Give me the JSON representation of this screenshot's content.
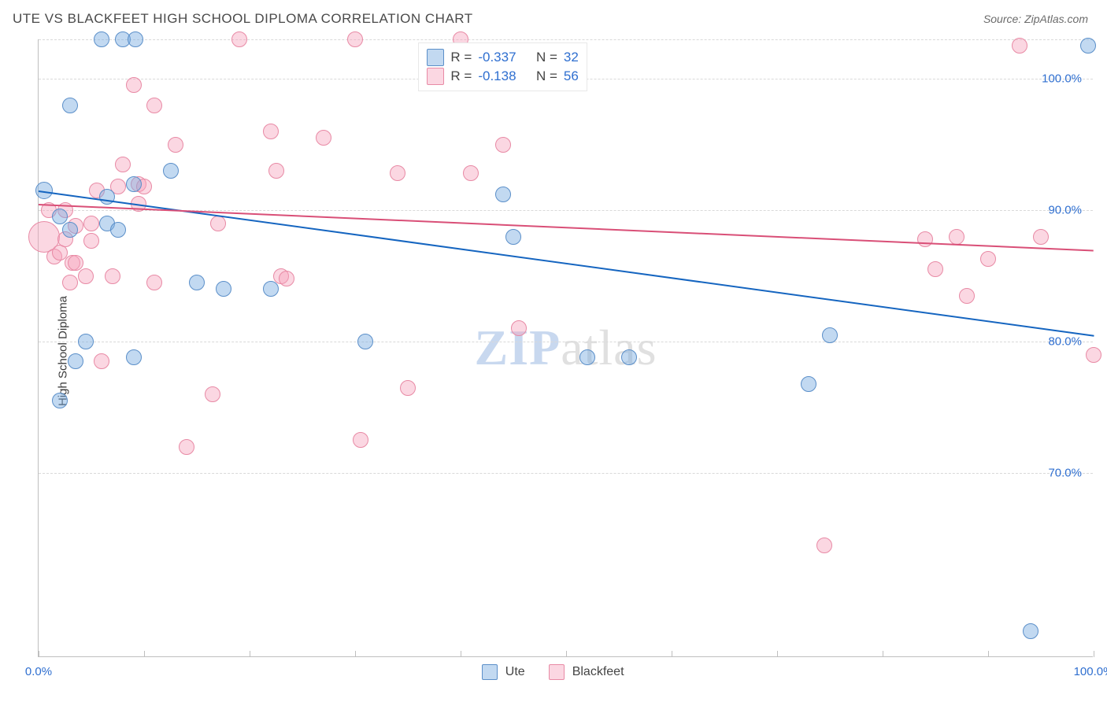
{
  "title": "UTE VS BLACKFEET HIGH SCHOOL DIPLOMA CORRELATION CHART",
  "source_label": "Source: ZipAtlas.com",
  "y_axis_label": "High School Diploma",
  "watermark": {
    "part1": "ZIP",
    "part2": "atlas"
  },
  "chart": {
    "type": "scatter",
    "background_color": "#ffffff",
    "grid_color": "#d9d9d9",
    "axis_color": "#bfbfbf",
    "tick_label_color": "#2f6fd0",
    "xlim": [
      0,
      100
    ],
    "ylim": [
      56,
      103
    ],
    "x_ticks_major": [
      0,
      100
    ],
    "x_ticks_minor": [
      10,
      20,
      30,
      40,
      50,
      60,
      70,
      80,
      90
    ],
    "x_tick_labels": {
      "0": "0.0%",
      "100": "100.0%"
    },
    "y_grid": [
      70,
      80,
      90,
      100,
      103
    ],
    "y_tick_labels": {
      "70": "70.0%",
      "80": "80.0%",
      "90": "90.0%",
      "100": "100.0%"
    },
    "marker_radius": 10,
    "marker_border_width": 1.5,
    "reg_line_width": 2,
    "series": [
      {
        "name": "Ute",
        "fill_color": "rgba(120,170,225,0.45)",
        "stroke_color": "#5b8fc9",
        "line_color": "#1565c0",
        "R": "-0.337",
        "N": "32",
        "reg_line": {
          "x1": 0,
          "y1": 91.5,
          "x2": 100,
          "y2": 80.5
        },
        "points": [
          {
            "x": 0.5,
            "y": 91.5,
            "r": 11
          },
          {
            "x": 2.0,
            "y": 89.5
          },
          {
            "x": 2.0,
            "y": 75.5
          },
          {
            "x": 3.0,
            "y": 98.0
          },
          {
            "x": 3.0,
            "y": 88.5
          },
          {
            "x": 3.5,
            "y": 78.5
          },
          {
            "x": 4.5,
            "y": 80.0
          },
          {
            "x": 6.0,
            "y": 103.0
          },
          {
            "x": 6.5,
            "y": 91.0
          },
          {
            "x": 6.5,
            "y": 89.0
          },
          {
            "x": 7.5,
            "y": 88.5
          },
          {
            "x": 8.0,
            "y": 103.0
          },
          {
            "x": 9.0,
            "y": 92.0
          },
          {
            "x": 9.2,
            "y": 103.0
          },
          {
            "x": 9.0,
            "y": 78.8
          },
          {
            "x": 12.5,
            "y": 93.0
          },
          {
            "x": 15.0,
            "y": 84.5
          },
          {
            "x": 17.5,
            "y": 84.0
          },
          {
            "x": 22.0,
            "y": 84.0
          },
          {
            "x": 31.0,
            "y": 80.0
          },
          {
            "x": 44.0,
            "y": 91.2
          },
          {
            "x": 45.0,
            "y": 88.0
          },
          {
            "x": 52.0,
            "y": 78.8
          },
          {
            "x": 56.0,
            "y": 78.8
          },
          {
            "x": 73.0,
            "y": 76.8
          },
          {
            "x": 75.0,
            "y": 80.5
          },
          {
            "x": 94.0,
            "y": 58.0
          },
          {
            "x": 99.5,
            "y": 102.5
          }
        ]
      },
      {
        "name": "Blackfeet",
        "fill_color": "rgba(245,160,185,0.42)",
        "stroke_color": "#e88aa5",
        "line_color": "#d94f77",
        "R": "-0.138",
        "N": "56",
        "reg_line": {
          "x1": 0,
          "y1": 90.5,
          "x2": 100,
          "y2": 87.0
        },
        "points": [
          {
            "x": 0.5,
            "y": 88.0,
            "r": 20
          },
          {
            "x": 1.0,
            "y": 90.0
          },
          {
            "x": 1.5,
            "y": 86.5
          },
          {
            "x": 2.0,
            "y": 86.8
          },
          {
            "x": 2.5,
            "y": 90.0
          },
          {
            "x": 2.5,
            "y": 87.8
          },
          {
            "x": 3.0,
            "y": 84.5
          },
          {
            "x": 3.2,
            "y": 86.0
          },
          {
            "x": 3.5,
            "y": 88.8
          },
          {
            "x": 3.5,
            "y": 86.0
          },
          {
            "x": 4.5,
            "y": 85.0
          },
          {
            "x": 5.0,
            "y": 89.0
          },
          {
            "x": 5.0,
            "y": 87.7
          },
          {
            "x": 5.5,
            "y": 91.5
          },
          {
            "x": 6.0,
            "y": 78.5
          },
          {
            "x": 7.0,
            "y": 85.0
          },
          {
            "x": 7.5,
            "y": 91.8
          },
          {
            "x": 8.0,
            "y": 93.5
          },
          {
            "x": 9.0,
            "y": 99.5
          },
          {
            "x": 9.5,
            "y": 92.0
          },
          {
            "x": 9.5,
            "y": 90.5
          },
          {
            "x": 10.0,
            "y": 91.8
          },
          {
            "x": 11.0,
            "y": 98.0
          },
          {
            "x": 11.0,
            "y": 84.5
          },
          {
            "x": 13.0,
            "y": 95.0
          },
          {
            "x": 14.0,
            "y": 72.0
          },
          {
            "x": 16.5,
            "y": 76.0
          },
          {
            "x": 17.0,
            "y": 89.0
          },
          {
            "x": 19.0,
            "y": 103.0
          },
          {
            "x": 22.0,
            "y": 96.0
          },
          {
            "x": 22.5,
            "y": 93.0
          },
          {
            "x": 23.0,
            "y": 85.0
          },
          {
            "x": 23.5,
            "y": 84.8
          },
          {
            "x": 27.0,
            "y": 95.5
          },
          {
            "x": 30.5,
            "y": 72.5
          },
          {
            "x": 30.0,
            "y": 103.0
          },
          {
            "x": 34.0,
            "y": 92.8
          },
          {
            "x": 35.0,
            "y": 76.5
          },
          {
            "x": 40.0,
            "y": 103.0
          },
          {
            "x": 41.0,
            "y": 92.8
          },
          {
            "x": 44.0,
            "y": 95.0
          },
          {
            "x": 45.5,
            "y": 81.0
          },
          {
            "x": 74.5,
            "y": 64.5
          },
          {
            "x": 84.0,
            "y": 87.8
          },
          {
            "x": 85.0,
            "y": 85.5
          },
          {
            "x": 87.0,
            "y": 88.0
          },
          {
            "x": 88.0,
            "y": 83.5
          },
          {
            "x": 90.0,
            "y": 86.3
          },
          {
            "x": 93.0,
            "y": 102.5
          },
          {
            "x": 95.0,
            "y": 88.0
          },
          {
            "x": 100.0,
            "y": 79.0
          }
        ]
      }
    ]
  },
  "legend_top": {
    "r_label": "R =",
    "n_label": "N ="
  },
  "legend_bottom": [
    {
      "label": "Ute",
      "fill": "rgba(120,170,225,0.45)",
      "stroke": "#5b8fc9"
    },
    {
      "label": "Blackfeet",
      "fill": "rgba(245,160,185,0.42)",
      "stroke": "#e88aa5"
    }
  ]
}
